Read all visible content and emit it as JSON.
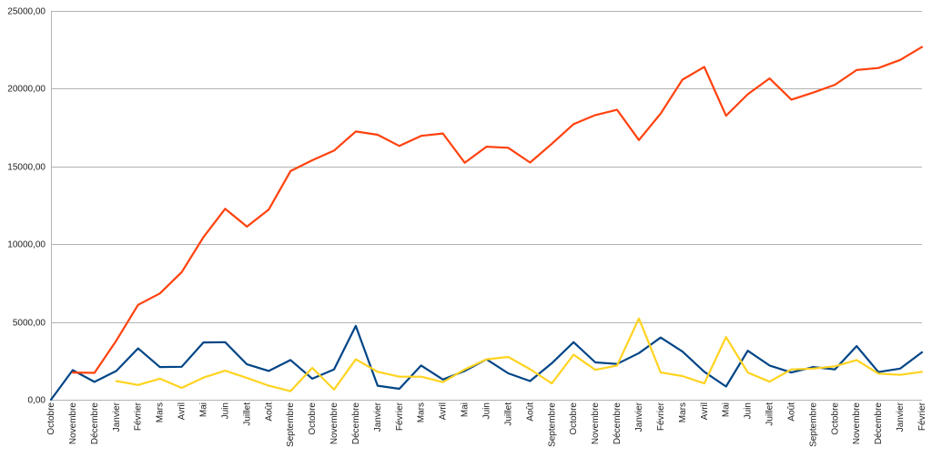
{
  "chart_data": {
    "type": "line",
    "title": "",
    "xlabel": "",
    "ylabel": "",
    "ylim": [
      0,
      25000
    ],
    "y_ticks": [
      {
        "value": 0,
        "label": "0,00"
      },
      {
        "value": 5000,
        "label": "5000,00"
      },
      {
        "value": 10000,
        "label": "10000,00"
      },
      {
        "value": 15000,
        "label": "15000,00"
      },
      {
        "value": 20000,
        "label": "20000,00"
      },
      {
        "value": 25000,
        "label": "25000,00"
      }
    ],
    "grid": true,
    "legend": "none",
    "categories": [
      "Octobre",
      "Novembre",
      "Décembre",
      "Janvier",
      "Février",
      "Mars",
      "Avril",
      "Mai",
      "Juin",
      "Juillet",
      "Août",
      "Septembre",
      "Octobre",
      "Novembre",
      "Décembre",
      "Janvier",
      "Février",
      "Mars",
      "Avril",
      "Mai",
      "Juin",
      "Juillet",
      "Août",
      "Septembre",
      "Octobre",
      "Novembre",
      "Décembre",
      "Janvier",
      "Février",
      "Mars",
      "Avril",
      "Mai",
      "Juin",
      "Juillet",
      "Août",
      "Septembre",
      "Octobre",
      "Novembre",
      "Décembre",
      "Janvier",
      "Février"
    ],
    "series": [
      {
        "color": "#004586",
        "values": [
          0,
          1900,
          1150,
          1850,
          3300,
          2100,
          2120,
          3680,
          3700,
          2280,
          1850,
          2550,
          1350,
          1950,
          4750,
          900,
          700,
          2200,
          1300,
          1850,
          2600,
          1700,
          1200,
          2350,
          3700,
          2400,
          2300,
          3000,
          4000,
          3100,
          1800,
          850,
          3150,
          2200,
          1750,
          2100,
          1950,
          3450,
          1780,
          2000,
          3050
        ]
      },
      {
        "color": "#ff420e",
        "values": [
          null,
          1750,
          1730,
          3800,
          6100,
          6830,
          8200,
          10450,
          12280,
          11130,
          12230,
          14700,
          15400,
          16020,
          17250,
          17040,
          16320,
          16970,
          17120,
          15240,
          16270,
          16200,
          15250,
          16460,
          17720,
          18300,
          18640,
          16700,
          18400,
          20580,
          21400,
          18260,
          19640,
          20660,
          19300,
          19750,
          20250,
          21200,
          21330,
          21850,
          22680
        ]
      },
      {
        "color": "#ffd320",
        "values": [
          null,
          null,
          null,
          1200,
          950,
          1350,
          760,
          1420,
          1870,
          1400,
          900,
          550,
          2050,
          650,
          2600,
          1800,
          1480,
          1480,
          1130,
          1950,
          2600,
          2750,
          1960,
          1050,
          2900,
          1920,
          2200,
          5230,
          1750,
          1520,
          1050,
          4030,
          1750,
          1160,
          1950,
          2000,
          2150,
          2550,
          1680,
          1600,
          1800
        ]
      }
    ]
  }
}
